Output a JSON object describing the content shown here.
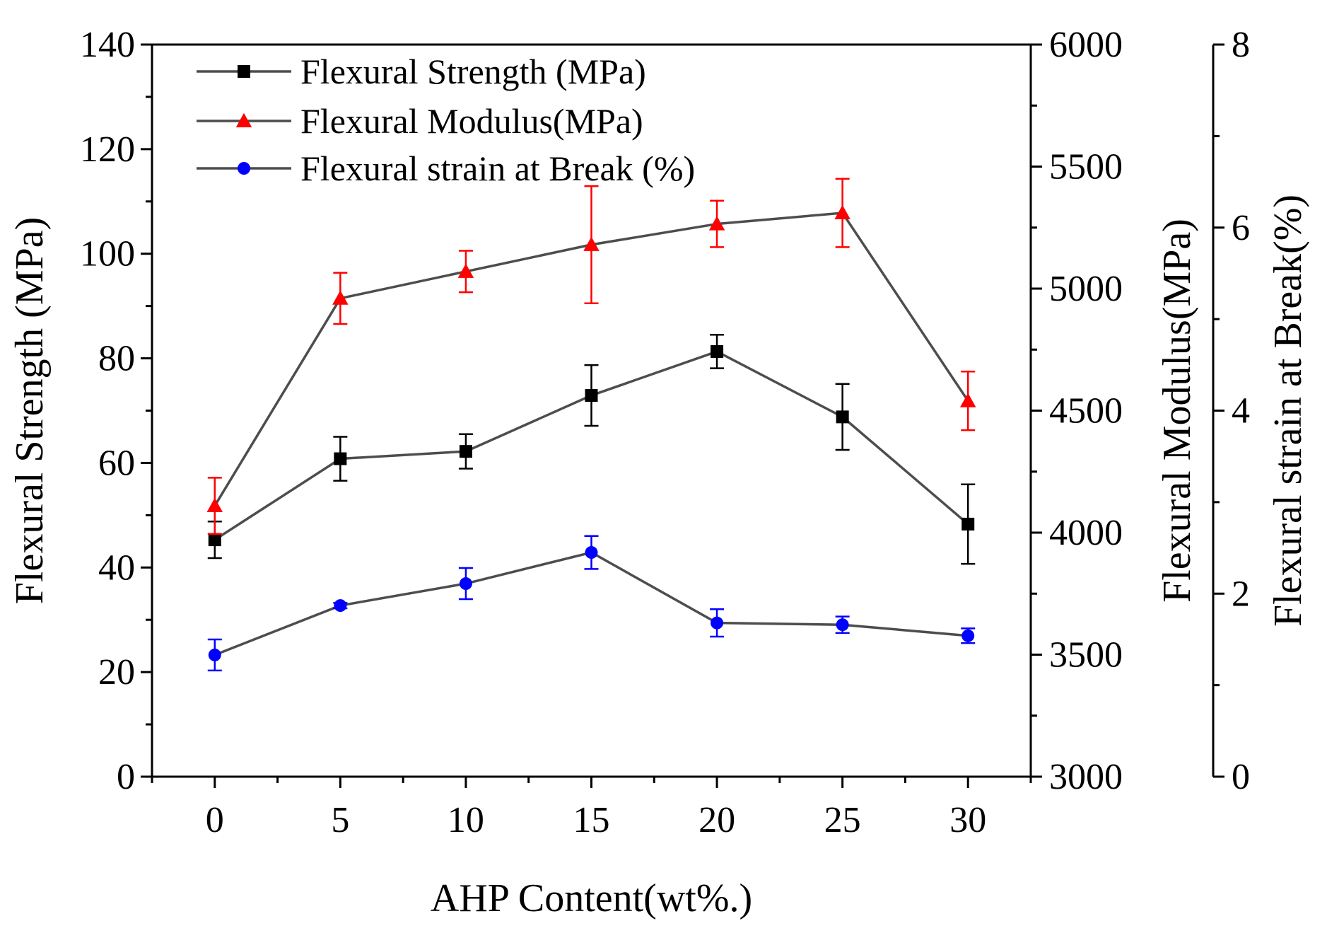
{
  "chart_data": {
    "type": "line",
    "xlabel": "AHP Content(wt%.)",
    "x": [
      0,
      5,
      10,
      15,
      20,
      25,
      30
    ],
    "xticks": [
      0,
      5,
      10,
      15,
      20,
      25,
      30
    ],
    "xlim": [
      -2.5,
      32.5
    ],
    "axes": {
      "left": {
        "label": "Flexural Strength (MPa)",
        "ylim": [
          0,
          140
        ],
        "ticks": [
          0,
          20,
          40,
          60,
          80,
          100,
          120,
          140
        ]
      },
      "right1": {
        "label": "Flexural Modulus(MPa)",
        "ylim": [
          3000,
          6000
        ],
        "ticks": [
          3000,
          3500,
          4000,
          4500,
          5000,
          5500,
          6000
        ]
      },
      "right2": {
        "label": "Flexural strain at Break(%)",
        "ylim": [
          0,
          8
        ],
        "ticks": [
          0,
          2,
          4,
          6,
          8
        ]
      }
    },
    "series": [
      {
        "name": "Flexural Strength (MPa)",
        "axis": "left",
        "marker": "square",
        "color": "#000000",
        "values": [
          45.3,
          60.8,
          62.2,
          72.9,
          81.3,
          68.8,
          48.3
        ],
        "errors": [
          3.5,
          4.2,
          3.3,
          5.8,
          3.2,
          6.3,
          7.6
        ]
      },
      {
        "name": "Flexural Modulus(MPa)",
        "axis": "right1",
        "marker": "triangle",
        "color": "#ff0000",
        "values": [
          4110,
          4960,
          5070,
          5180,
          5265,
          5310,
          4540
        ],
        "errors": [
          115,
          105,
          85,
          240,
          95,
          140,
          120
        ]
      },
      {
        "name": "Flexural strain at Break (%)",
        "axis": "right2",
        "marker": "circle",
        "color": "#0000ff",
        "values": [
          1.33,
          1.87,
          2.11,
          2.45,
          1.68,
          1.66,
          1.54
        ],
        "errors": [
          0.17,
          0.03,
          0.17,
          0.18,
          0.15,
          0.09,
          0.08
        ]
      }
    ],
    "line_color": "#4d4d4d",
    "legend_position": "top-left",
    "grid": false
  }
}
